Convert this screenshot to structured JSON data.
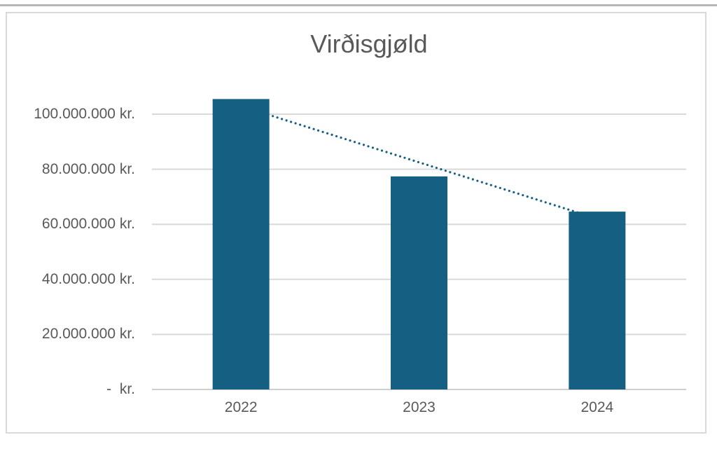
{
  "chart_data": {
    "type": "bar",
    "title": "Virðisgjøld",
    "categories": [
      "2022",
      "2023",
      "2024"
    ],
    "values": [
      105500000,
      77400000,
      64600000
    ],
    "unit": "kr.",
    "xlabel": "",
    "ylabel": "",
    "ylim": [
      0,
      110000000
    ],
    "grid": true,
    "legend": false,
    "yticks": [
      {
        "value": 0,
        "label": "-  kr."
      },
      {
        "value": 20000000,
        "label": "20.000.000 kr."
      },
      {
        "value": 40000000,
        "label": "40.000.000 kr."
      },
      {
        "value": 60000000,
        "label": "60.000.000 kr."
      },
      {
        "value": 80000000,
        "label": "80.000.000 kr."
      },
      {
        "value": 100000000,
        "label": "100.000.000 kr."
      }
    ],
    "trendline": {
      "type": "linear",
      "style": "dotted",
      "fit_values_at_first_and_last_category": [
        102950000,
        62050000
      ]
    }
  },
  "colors": {
    "bar": "#156082",
    "trendline": "#156082",
    "gridline": "#d9d9d9",
    "axis_line": "#cfcfcf",
    "text": "#595959",
    "chart_border": "#d9d9d9",
    "background": "#ffffff",
    "top_edge_line": "#b7b7b7"
  }
}
